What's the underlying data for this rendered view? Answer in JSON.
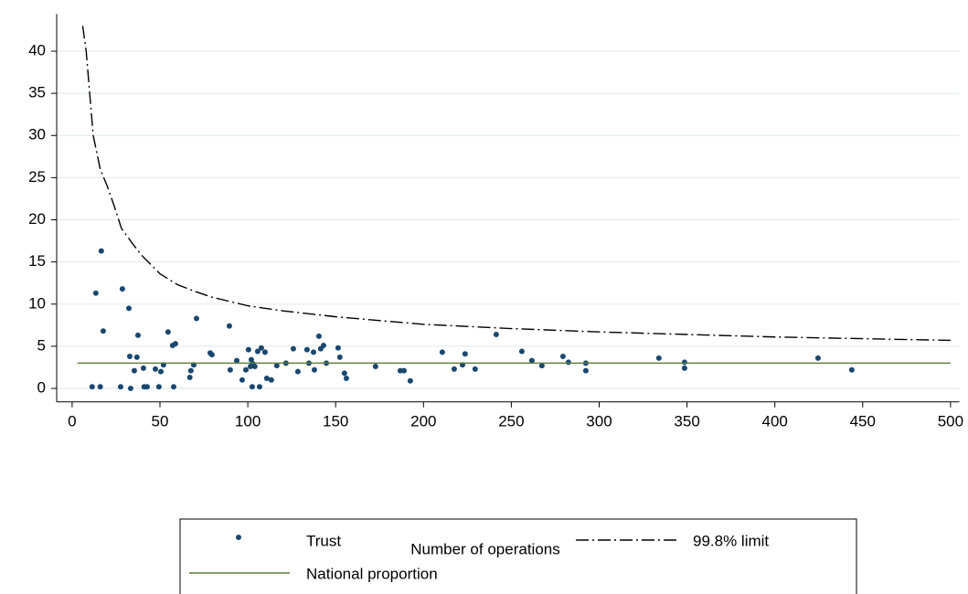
{
  "chart_data": {
    "type": "scatter",
    "x_label": "Number of operations",
    "xlim": [
      -8.8,
      505
    ],
    "ylim": [
      -1.6,
      44.4
    ],
    "xticks": [
      0,
      50,
      100,
      150,
      200,
      250,
      300,
      350,
      400,
      450,
      500
    ],
    "yticks": [
      0,
      5,
      10,
      15,
      20,
      25,
      30,
      35,
      40
    ],
    "grid": true,
    "legend": "bottom",
    "series": [
      {
        "name": "Trust",
        "mark": "dot",
        "color": "#1a476f",
        "x": [
          11.4,
          13.5,
          16,
          16.6,
          17.7,
          27.6,
          28.6,
          32.3,
          32.8,
          33.3,
          35.4,
          36.9,
          37.5,
          40.6,
          41,
          42.7,
          47.4,
          49.4,
          50.5,
          52,
          54.6,
          57.2,
          57.8,
          58.8,
          67,
          67.6,
          69.2,
          70.8,
          78.6,
          79.6,
          89.5,
          90,
          93.7,
          96.8,
          98.9,
          100.4,
          101.5,
          102,
          102.5,
          103,
          104,
          105.6,
          106.7,
          107.7,
          109.8,
          110.8,
          113.4,
          116.5,
          121.7,
          125.9,
          128.5,
          133.7,
          134.8,
          137.4,
          137.9,
          140.5,
          141.5,
          143.1,
          144.7,
          151.4,
          152.4,
          155,
          156.1,
          172.7,
          186.8,
          188.9,
          192.5,
          210.7,
          217.5,
          222.2,
          223.7,
          229.4,
          241.4,
          256,
          261.7,
          267.4,
          279.4,
          282.5,
          292.4,
          292.4,
          334,
          348.6,
          348.6,
          424.6,
          443.8
        ],
        "values": [
          0.2,
          11.3,
          0.2,
          16.3,
          6.8,
          0.2,
          11.8,
          9.5,
          3.8,
          0,
          2.1,
          3.7,
          6.3,
          2.4,
          0.2,
          0.2,
          2.3,
          0.2,
          2,
          2.8,
          6.7,
          5.1,
          0.2,
          5.3,
          1.3,
          2.1,
          2.8,
          8.3,
          4.2,
          4,
          7.4,
          2.2,
          3.3,
          1,
          2.2,
          4.6,
          2.6,
          3.4,
          0.2,
          2.9,
          2.6,
          4.4,
          0.2,
          4.8,
          4.3,
          1.2,
          1,
          2.7,
          3,
          4.7,
          2,
          4.6,
          3,
          4.3,
          2.2,
          6.2,
          4.7,
          5.1,
          3,
          4.8,
          3.7,
          1.8,
          1.2,
          2.6,
          2.1,
          2.1,
          0.9,
          4.3,
          2.3,
          2.8,
          4.1,
          2.3,
          6.4,
          4.4,
          3.3,
          2.7,
          3.8,
          3.1,
          3,
          2.1,
          3.6,
          3.1,
          2.4,
          3.6,
          2.2
        ]
      },
      {
        "name": "99.8% limit",
        "mark": "line",
        "dash": "dash-dot",
        "color": "#000000",
        "x": [
          6,
          8,
          12,
          16,
          20,
          25,
          28,
          35,
          40,
          50,
          60,
          70,
          80,
          100,
          120,
          150,
          200,
          250,
          300,
          350,
          400,
          450,
          500
        ],
        "values": [
          43,
          40,
          30,
          26,
          24,
          21,
          19,
          17,
          15.7,
          13.6,
          12.3,
          11.5,
          10.8,
          9.8,
          9.2,
          8.5,
          7.6,
          7.1,
          6.7,
          6.4,
          6.1,
          5.9,
          5.7
        ]
      },
      {
        "name": "National proportion",
        "mark": "line",
        "dash": "solid",
        "color": "#5d7d38",
        "x": [
          3,
          500
        ],
        "values": [
          3,
          3
        ]
      }
    ]
  }
}
